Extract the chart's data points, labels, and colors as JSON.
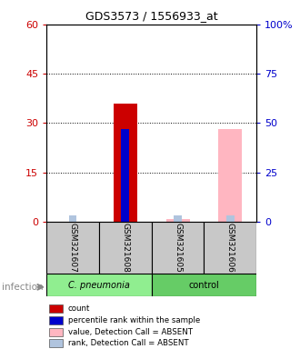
{
  "title": "GDS3573 / 1556933_at",
  "samples": [
    "GSM321607",
    "GSM321608",
    "GSM321605",
    "GSM321606"
  ],
  "ylim_left": [
    0,
    60
  ],
  "ylim_right": [
    0,
    100
  ],
  "yticks_left": [
    0,
    15,
    30,
    45,
    60
  ],
  "yticks_right": [
    0,
    25,
    50,
    75,
    100
  ],
  "left_tick_labels": [
    "0",
    "15",
    "30",
    "45",
    "60"
  ],
  "right_tick_labels": [
    "0",
    "25",
    "50",
    "75",
    "100%"
  ],
  "count_values": [
    0,
    36,
    0,
    0
  ],
  "count_color": "#CC0000",
  "percentile_values": [
    0,
    47,
    0,
    0
  ],
  "percentile_color": "#0000CC",
  "absent_value_values": [
    0,
    0,
    1.5,
    47
  ],
  "absent_value_color": "#FFB6C1",
  "absent_rank_values": [
    3,
    0,
    3,
    3
  ],
  "absent_rank_color": "#B0C4DE",
  "left_axis_color": "#CC0000",
  "right_axis_color": "#0000CC",
  "background_color": "#ffffff",
  "plot_bg_color": "#ffffff",
  "sample_bg_color": "#C8C8C8",
  "cpneu_color": "#90EE90",
  "control_color": "#66CC66",
  "legend_items": [
    {
      "label": "count",
      "color": "#CC0000"
    },
    {
      "label": "percentile rank within the sample",
      "color": "#0000CC"
    },
    {
      "label": "value, Detection Call = ABSENT",
      "color": "#FFB6C1"
    },
    {
      "label": "rank, Detection Call = ABSENT",
      "color": "#B0C4DE"
    }
  ],
  "infection_label": "infection"
}
